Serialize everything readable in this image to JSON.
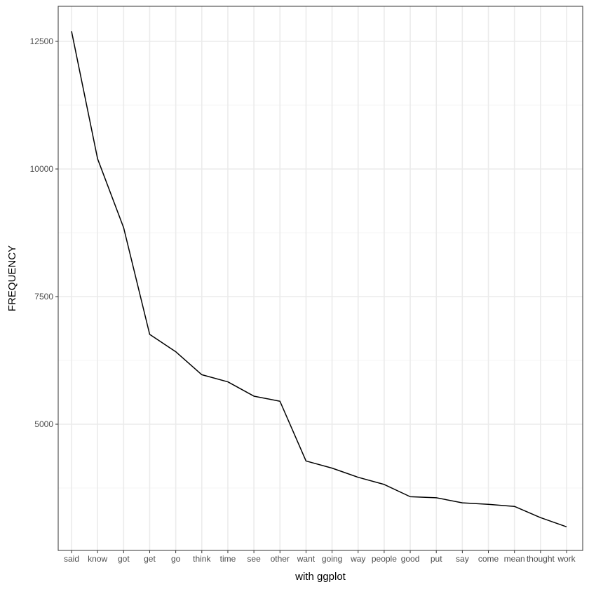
{
  "chart_data": {
    "type": "line",
    "title": "",
    "xlabel": "with ggplot",
    "ylabel": "FREQUENCY",
    "categories": [
      "said",
      "know",
      "got",
      "get",
      "go",
      "think",
      "time",
      "see",
      "other",
      "want",
      "going",
      "way",
      "people",
      "good",
      "put",
      "say",
      "come",
      "mean",
      "thought",
      "work"
    ],
    "series": [
      {
        "values": [
          12700,
          10200,
          8850,
          6760,
          6420,
          5970,
          5830,
          5550,
          5450,
          4280,
          4140,
          3960,
          3820,
          3580,
          3560,
          3460,
          3430,
          3390,
          3170,
          2990
        ]
      }
    ],
    "y_ticks": [
      5000,
      7500,
      10000,
      12500
    ],
    "y_tick_labels": [
      "5000",
      "7500",
      "10000",
      "12500"
    ],
    "ylim": [
      2500,
      13200
    ],
    "grid": true,
    "legend": "none",
    "colors": {
      "line": "#000000",
      "panel_border": "#333333",
      "grid_major": "#ebebeb",
      "grid_minor": "#f5f5f5",
      "tick_text": "#4d4d4d"
    }
  }
}
